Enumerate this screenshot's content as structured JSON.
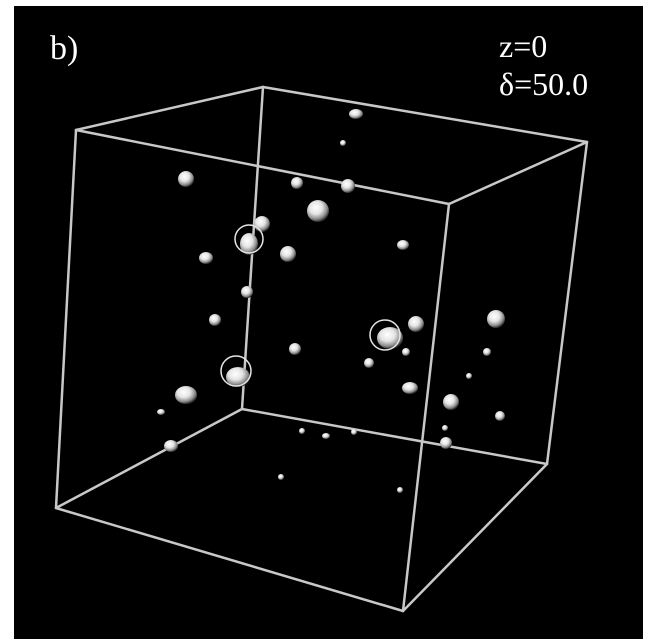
{
  "panel_label": "b)",
  "annotation": {
    "z": "z=0",
    "delta": "δ=50.0"
  },
  "colors": {
    "background": "#000000",
    "box_edges": "#c8c8c8",
    "halo": "#ffffff",
    "highlight_ring": "#e6e6e6",
    "label_text": "#ffffff"
  }
}
